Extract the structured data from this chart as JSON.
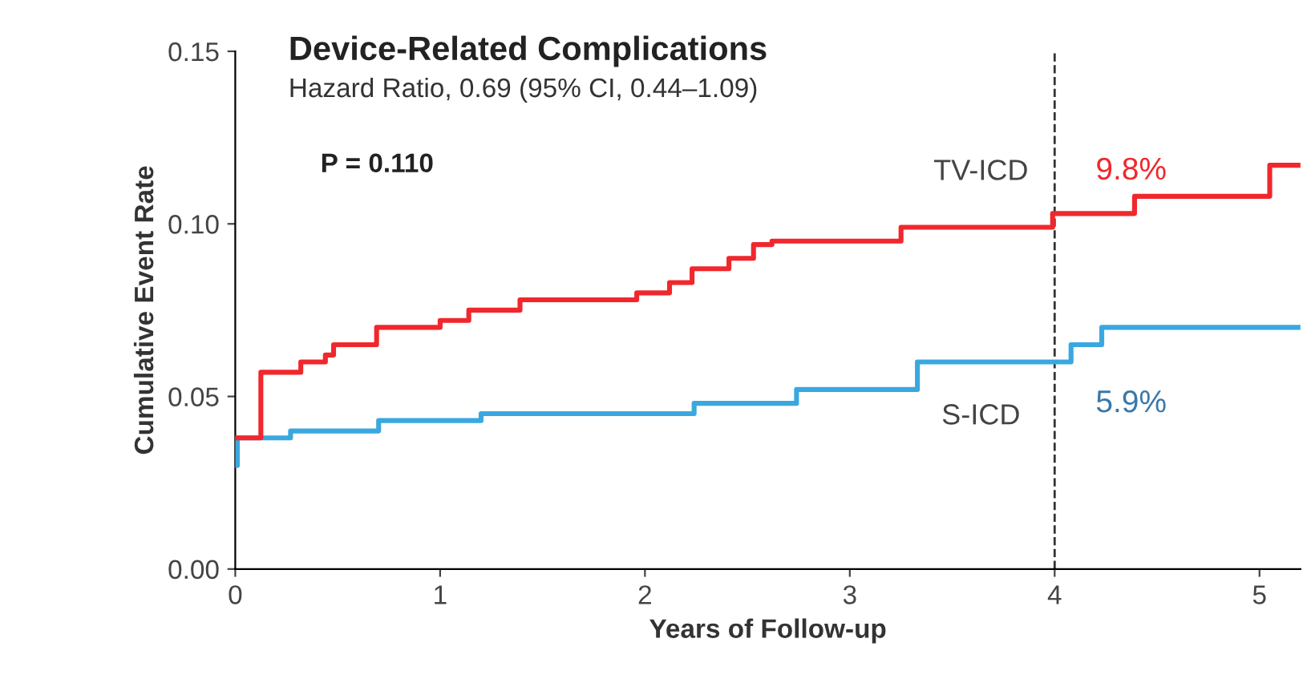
{
  "chart_data": {
    "type": "step",
    "title": "Device-Related Complications",
    "subtitle": "Hazard Ratio, 0.69 (95% CI, 0.44–1.09)",
    "xlabel": "Years of Follow-up",
    "ylabel": "Cumulative Event Rate",
    "xlim": [
      0,
      5.2
    ],
    "xticks": [
      0,
      1,
      2,
      3,
      4,
      5
    ],
    "ylim": [
      0,
      0.15
    ],
    "yticks": [
      {
        "value": 0,
        "label": "0.00"
      },
      {
        "value": 0.05,
        "label": "0.05"
      },
      {
        "value": 0.1,
        "label": "0.10"
      },
      {
        "value": 0.15,
        "label": "0.15"
      }
    ],
    "series": [
      {
        "name": "TV-ICD",
        "color": "#f0282d",
        "x": [
          0,
          0.125,
          0.32,
          0.44,
          0.48,
          0.69,
          1.0,
          1.14,
          1.39,
          1.96,
          2.12,
          2.23,
          2.41,
          2.53,
          2.62,
          3.25,
          3.99,
          4.39,
          5.05,
          5.2
        ],
        "values": [
          0.038,
          0.057,
          0.06,
          0.062,
          0.065,
          0.07,
          0.072,
          0.075,
          0.078,
          0.08,
          0.083,
          0.087,
          0.09,
          0.094,
          0.095,
          0.099,
          0.103,
          0.108,
          0.117,
          0.117
        ]
      },
      {
        "name": "S-ICD",
        "color": "#3aa8de",
        "x": [
          0,
          0.01,
          0.27,
          0.7,
          1.2,
          2.24,
          2.74,
          3.33,
          4.08,
          4.23,
          5.2
        ],
        "values": [
          0.03,
          0.038,
          0.04,
          0.043,
          0.045,
          0.048,
          0.052,
          0.06,
          0.065,
          0.07,
          0.07
        ]
      }
    ],
    "ref_lines": [
      {
        "axis": "x",
        "value": 4,
        "color": "#333333",
        "line_style": "dashed"
      }
    ],
    "annotations": [
      {
        "text": "9.8%",
        "x": 4,
        "y": 0.098
      },
      {
        "text": "5.9%",
        "x": 4,
        "y": 0.059
      },
      "P = 0.110"
    ],
    "legend": false,
    "grid": false
  }
}
